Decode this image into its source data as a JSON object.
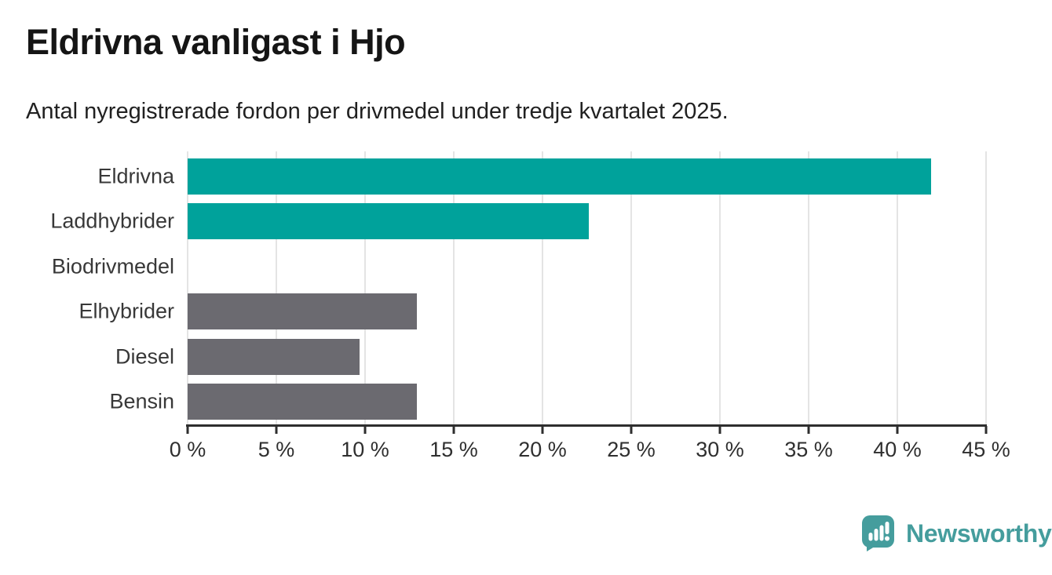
{
  "header": {
    "title": "Eldrivna vanligast i Hjo",
    "subtitle": "Antal nyregistrerade fordon per drivmedel under tredje kvartalet 2025."
  },
  "chart_data": {
    "type": "bar",
    "orientation": "horizontal",
    "categories": [
      "Eldrivna",
      "Laddhybrider",
      "Biodrivmedel",
      "Elhybrider",
      "Diesel",
      "Bensin"
    ],
    "values": [
      41.9,
      22.6,
      0,
      12.9,
      9.7,
      12.9
    ],
    "unit": "%",
    "xlim": [
      0,
      45
    ],
    "x_tick_step": 5,
    "x_tick_labels": [
      "0 %",
      "5 %",
      "10 %",
      "15 %",
      "20 %",
      "25 %",
      "30 %",
      "35 %",
      "40 %",
      "45 %"
    ],
    "bar_colors": [
      "#00a29b",
      "#00a29b",
      "#6b6a70",
      "#6b6a70",
      "#6b6a70",
      "#6b6a70"
    ],
    "highlight_color": "#00a29b",
    "default_color": "#6b6a70",
    "grid": true,
    "legend": "none"
  },
  "footer": {
    "brand": "Newsworthy",
    "brand_color": "#459d9d"
  }
}
